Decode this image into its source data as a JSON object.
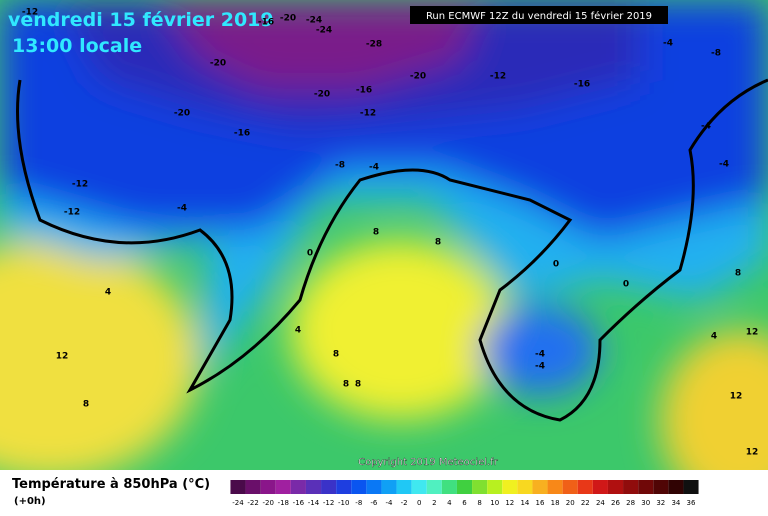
{
  "header": {
    "date": "vendredi 15 février 2019",
    "time": "13:00 locale",
    "run": "Run ECMWF 12Z du vendredi 15 février 2019"
  },
  "map": {
    "copyright": "Copyright 2019 Meteociel.fr",
    "contour_labels": [
      "-12",
      "-16",
      "-20",
      "-24",
      "-24",
      "-28",
      "-20",
      "-20",
      "-12",
      "-16",
      "-16",
      "-20",
      "-20",
      "-12",
      "-16",
      "-8",
      "-4",
      "-12",
      "-12",
      "-4",
      "-4",
      "-8",
      "-4",
      "-4",
      "0",
      "0",
      "0",
      "4",
      "4",
      "8",
      "8",
      "8",
      "12",
      "12",
      "8",
      "8",
      "8",
      "8",
      "-4",
      "-4",
      "12",
      "12",
      "4"
    ]
  },
  "footer": {
    "title": "Température à 850hPa (°C)",
    "lead": "(+0h)"
  },
  "colorbar": {
    "ticks": [
      -24,
      -22,
      -20,
      -18,
      -16,
      -14,
      -12,
      -10,
      -8,
      -6,
      -4,
      -2,
      0,
      2,
      4,
      6,
      8,
      10,
      12,
      14,
      16,
      18,
      20,
      22,
      24,
      26,
      28,
      30,
      32,
      34,
      36
    ],
    "colors": [
      "#4a0a4a",
      "#6a0f6a",
      "#8a168a",
      "#a020a0",
      "#7a2aa8",
      "#5a30b8",
      "#3a32c8",
      "#1e3ee0",
      "#0a55f0",
      "#0a78f5",
      "#10a0f5",
      "#20c8f5",
      "#40e8f0",
      "#50f0c0",
      "#40e080",
      "#40d040",
      "#80e030",
      "#b8f020",
      "#f0f020",
      "#f8d820",
      "#f8b020",
      "#f88818",
      "#f06018",
      "#e83818",
      "#d01818",
      "#b01010",
      "#900c0c",
      "#700808",
      "#500505",
      "#300303",
      "#101010"
    ]
  }
}
